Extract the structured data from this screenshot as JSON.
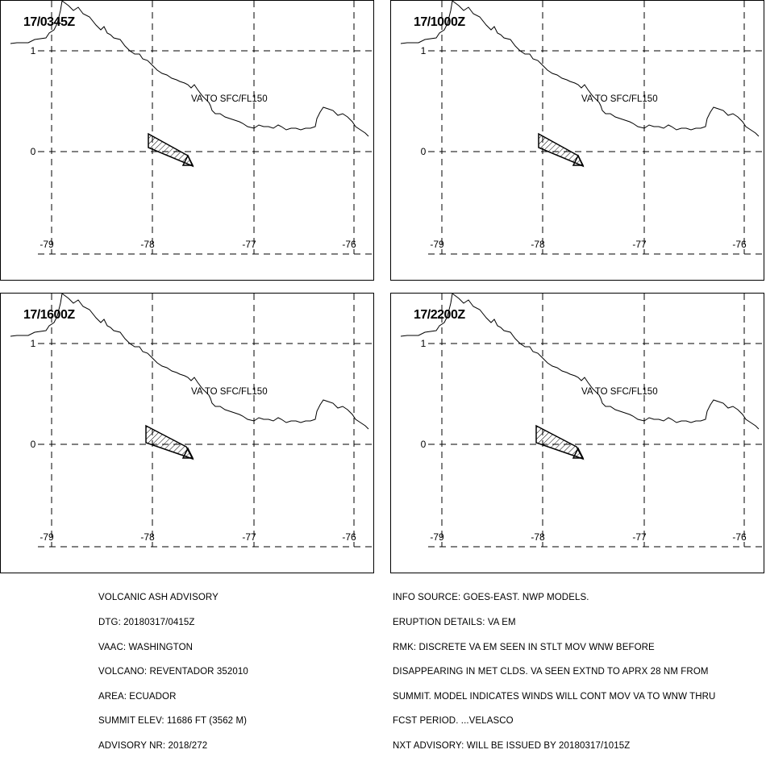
{
  "panels": [
    {
      "timestamp": "17/0345Z",
      "label": "VA TO SFC/FL150"
    },
    {
      "timestamp": "17/1000Z",
      "label": "VA TO SFC/FL150"
    },
    {
      "timestamp": "17/1600Z",
      "label": "VA TO SFC/FL150"
    },
    {
      "timestamp": "17/2200Z",
      "label": "VA TO SFC/FL150"
    }
  ],
  "axes": {
    "lon_labels": [
      "-79",
      "-78",
      "-77",
      "-76"
    ],
    "lat_labels": [
      "1",
      "0"
    ]
  },
  "advisory_left": [
    "VOLCANIC ASH ADVISORY",
    "DTG: 20180317/0415Z",
    "VAAC: WASHINGTON",
    "VOLCANO: REVENTADOR 352010",
    "AREA: ECUADOR",
    "SUMMIT ELEV: 11686 FT (3562 M)",
    "ADVISORY NR: 2018/272"
  ],
  "advisory_right": [
    "INFO SOURCE: GOES-EAST. NWP MODELS.",
    "ERUPTION DETAILS: VA EM",
    "RMK: DISCRETE VA EM SEEN IN STLT MOV WNW BEFORE",
    "DISAPPEARING IN MET CLDS. VA SEEN EXTND TO APRX 28 NM FROM",
    "SUMMIT. MODEL INDICATES WINDS WILL CONT MOV VA TO WNW THRU",
    "FCST PERIOD. ...VELASCO",
    "NXT ADVISORY: WILL BE ISSUED BY 20180317/1015Z"
  ]
}
